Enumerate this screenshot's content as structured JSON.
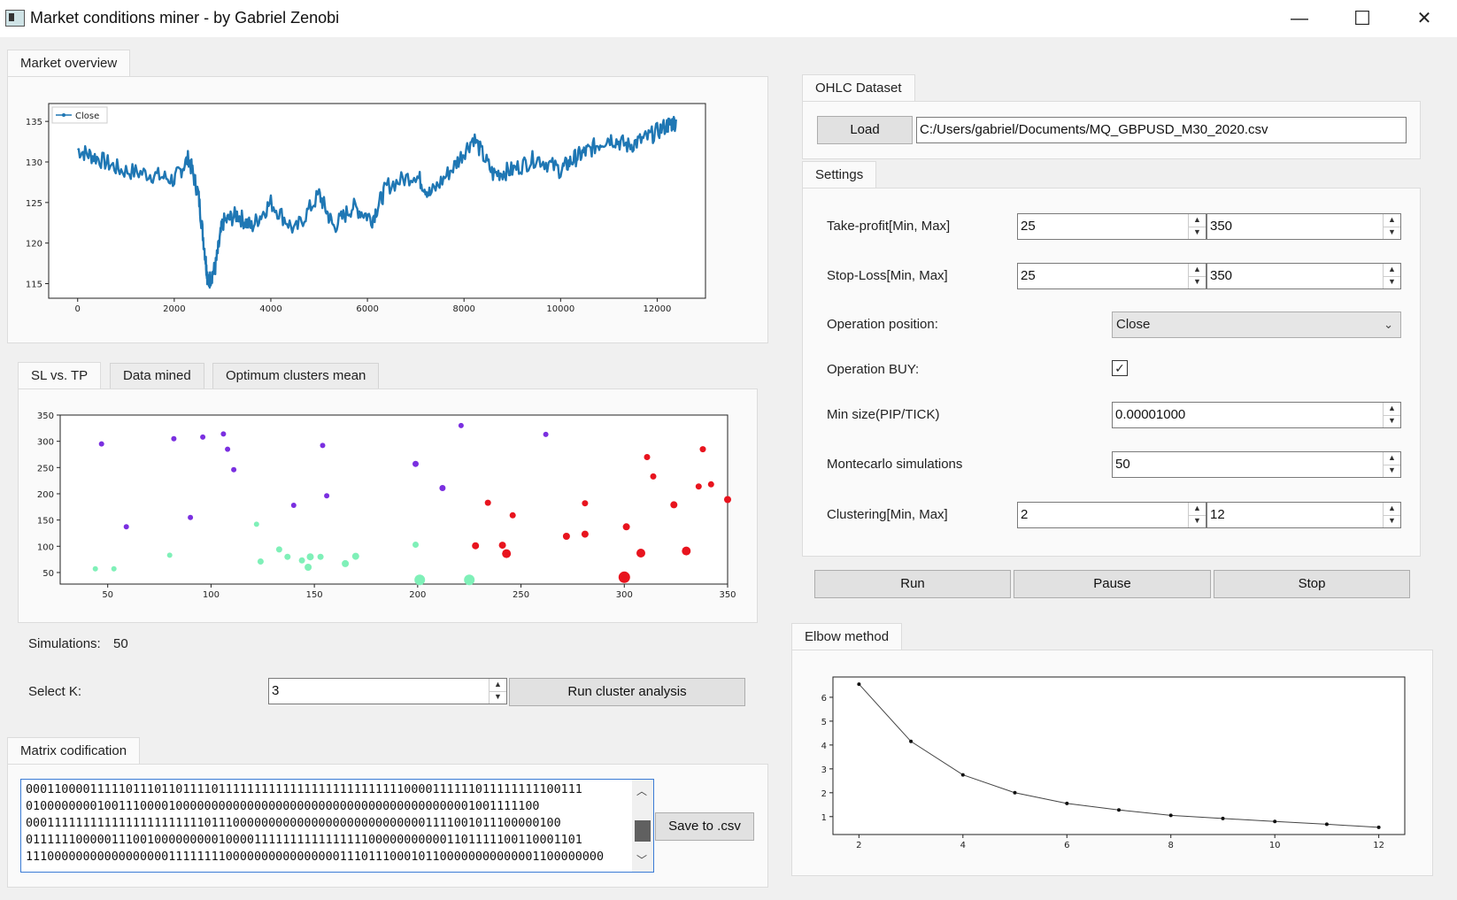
{
  "window": {
    "title": "Market conditions miner - by Gabriel Zenobi",
    "minimize": "—",
    "maximize": "☐",
    "close": "✕"
  },
  "market": {
    "tab": "Market overview",
    "chart_data": {
      "type": "line",
      "title": "",
      "legend": "Close",
      "legend_position": "top-left",
      "x_ticks": [
        "0",
        "2000",
        "4000",
        "6000",
        "8000",
        "10000",
        "12000"
      ],
      "y_ticks": [
        "135",
        "130",
        "125",
        "120",
        "115"
      ],
      "xlim": [
        -600,
        13000
      ],
      "ylim": [
        113.2,
        137.2
      ],
      "x": [
        0,
        400,
        900,
        1500,
        2000,
        2300,
        2500,
        2650,
        2700,
        2850,
        3000,
        3300,
        3600,
        4000,
        4500,
        5000,
        5300,
        5700,
        6100,
        6400,
        7000,
        7300,
        7800,
        8200,
        8600,
        9000,
        9500,
        10000,
        10300,
        10600,
        11000,
        11400,
        11800,
        12200,
        12400
      ],
      "y": [
        131.5,
        130.5,
        129.0,
        128.5,
        127.8,
        130.5,
        126.0,
        118.0,
        115.0,
        117.0,
        122.5,
        123.5,
        122.0,
        125.0,
        121.5,
        126.0,
        122.0,
        124.5,
        123.0,
        127.0,
        128.5,
        126.0,
        129.5,
        133.0,
        128.5,
        129.0,
        130.5,
        129.0,
        130.5,
        131.5,
        133.0,
        132.0,
        133.0,
        134.5,
        135.0
      ]
    }
  },
  "scatter_tabs": [
    "SL vs. TP",
    "Data mined",
    "Optimum clusters mean"
  ],
  "scatter": {
    "chart_data": {
      "type": "scatter",
      "title": "",
      "x_ticks": [
        "50",
        "100",
        "150",
        "200",
        "250",
        "300",
        "350"
      ],
      "y_ticks": [
        "350",
        "300",
        "250",
        "200",
        "150",
        "100",
        "50"
      ],
      "xlim": [
        27,
        350
      ],
      "ylim": [
        28,
        350
      ],
      "points": [
        {
          "x": 47,
          "y": 295,
          "s": 3,
          "c": "#7a2fe0"
        },
        {
          "x": 82,
          "y": 305,
          "s": 3,
          "c": "#7a2fe0"
        },
        {
          "x": 96,
          "y": 308,
          "s": 3,
          "c": "#7a2fe0"
        },
        {
          "x": 106,
          "y": 314,
          "s": 3,
          "c": "#7a2fe0"
        },
        {
          "x": 108,
          "y": 285,
          "s": 3,
          "c": "#7a2fe0"
        },
        {
          "x": 111,
          "y": 246,
          "s": 3,
          "c": "#7a2fe0"
        },
        {
          "x": 59,
          "y": 137,
          "s": 3,
          "c": "#7a2fe0"
        },
        {
          "x": 90,
          "y": 155,
          "s": 3,
          "c": "#7a2fe0"
        },
        {
          "x": 154,
          "y": 292,
          "s": 3,
          "c": "#7a2fe0"
        },
        {
          "x": 140,
          "y": 178,
          "s": 3,
          "c": "#7a2fe0"
        },
        {
          "x": 156,
          "y": 196,
          "s": 3,
          "c": "#7a2fe0"
        },
        {
          "x": 199,
          "y": 257,
          "s": 3.5,
          "c": "#7a2fe0"
        },
        {
          "x": 221,
          "y": 330,
          "s": 3,
          "c": "#7a2fe0"
        },
        {
          "x": 212,
          "y": 211,
          "s": 3.5,
          "c": "#7a2fe0"
        },
        {
          "x": 262,
          "y": 313,
          "s": 3,
          "c": "#7a2fe0"
        },
        {
          "x": 44,
          "y": 57,
          "s": 3,
          "c": "#7ff0b8"
        },
        {
          "x": 53,
          "y": 57,
          "s": 3,
          "c": "#7ff0b8"
        },
        {
          "x": 80,
          "y": 83,
          "s": 3,
          "c": "#7ff0b8"
        },
        {
          "x": 122,
          "y": 142,
          "s": 3,
          "c": "#7ff0b8"
        },
        {
          "x": 124,
          "y": 71,
          "s": 3.5,
          "c": "#7ff0b8"
        },
        {
          "x": 133,
          "y": 94,
          "s": 3.5,
          "c": "#7ff0b8"
        },
        {
          "x": 137,
          "y": 80,
          "s": 3.5,
          "c": "#7ff0b8"
        },
        {
          "x": 144,
          "y": 73,
          "s": 3.5,
          "c": "#7ff0b8"
        },
        {
          "x": 148,
          "y": 80,
          "s": 4,
          "c": "#7ff0b8"
        },
        {
          "x": 147,
          "y": 60,
          "s": 4,
          "c": "#7ff0b8"
        },
        {
          "x": 153,
          "y": 80,
          "s": 3.5,
          "c": "#7ff0b8"
        },
        {
          "x": 170,
          "y": 81,
          "s": 4,
          "c": "#7ff0b8"
        },
        {
          "x": 165,
          "y": 67,
          "s": 4,
          "c": "#7ff0b8"
        },
        {
          "x": 199,
          "y": 103,
          "s": 3.5,
          "c": "#7ff0b8"
        },
        {
          "x": 201,
          "y": 36,
          "s": 6,
          "c": "#7ff0b8"
        },
        {
          "x": 225,
          "y": 36,
          "s": 6,
          "c": "#7ff0b8"
        },
        {
          "x": 228,
          "y": 101,
          "s": 4,
          "c": "#e8141e"
        },
        {
          "x": 234,
          "y": 183,
          "s": 3.5,
          "c": "#e8141e"
        },
        {
          "x": 241,
          "y": 102,
          "s": 4,
          "c": "#e8141e"
        },
        {
          "x": 243,
          "y": 86,
          "s": 5,
          "c": "#e8141e"
        },
        {
          "x": 246,
          "y": 159,
          "s": 3.5,
          "c": "#e8141e"
        },
        {
          "x": 272,
          "y": 119,
          "s": 4,
          "c": "#e8141e"
        },
        {
          "x": 281,
          "y": 182,
          "s": 3.5,
          "c": "#e8141e"
        },
        {
          "x": 281,
          "y": 123,
          "s": 4,
          "c": "#e8141e"
        },
        {
          "x": 301,
          "y": 137,
          "s": 4,
          "c": "#e8141e"
        },
        {
          "x": 300,
          "y": 41,
          "s": 6.5,
          "c": "#e8141e"
        },
        {
          "x": 308,
          "y": 87,
          "s": 5,
          "c": "#e8141e"
        },
        {
          "x": 311,
          "y": 270,
          "s": 3.5,
          "c": "#e8141e"
        },
        {
          "x": 314,
          "y": 233,
          "s": 3.5,
          "c": "#e8141e"
        },
        {
          "x": 324,
          "y": 179,
          "s": 4,
          "c": "#e8141e"
        },
        {
          "x": 330,
          "y": 91,
          "s": 5,
          "c": "#e8141e"
        },
        {
          "x": 336,
          "y": 214,
          "s": 3.5,
          "c": "#e8141e"
        },
        {
          "x": 338,
          "y": 285,
          "s": 3.5,
          "c": "#e8141e"
        },
        {
          "x": 342,
          "y": 218,
          "s": 3.5,
          "c": "#e8141e"
        },
        {
          "x": 350,
          "y": 189,
          "s": 4,
          "c": "#e8141e"
        }
      ]
    }
  },
  "simulations": {
    "label": "Simulations:",
    "value": "50"
  },
  "selectk": {
    "label": "Select K:",
    "value": "3",
    "button": "Run cluster analysis"
  },
  "matrix": {
    "tab": "Matrix codification",
    "save": "Save to .csv",
    "lines": [
      "000110000111110111011011110111111111111111111111111110000111111011111111100111",
      "010000000010011100001000000000000000000000000000000000000000001001111100",
      "000111111111111111111111101110000000000000000000000000001111001011100000100",
      "011111100000111001000000000100001111111111111111000000000001101111100110001101",
      "111000000000000000001111111100000000000000001110111000101100000000000001100000000"
    ]
  },
  "ohlc": {
    "tab": "OHLC Dataset",
    "load": "Load",
    "path": "C:/Users/gabriel/Documents/MQ_GBPUSD_M30_2020.csv"
  },
  "settings": {
    "tab": "Settings",
    "tp": {
      "label": "Take-profit[Min, Max]",
      "min": "25",
      "max": "350"
    },
    "sl": {
      "label": "Stop-Loss[Min, Max]",
      "min": "25",
      "max": "350"
    },
    "op_position": {
      "label": "Operation position:",
      "value": "Close"
    },
    "op_buy": {
      "label": "Operation BUY:",
      "checked": "✓"
    },
    "min_size": {
      "label": "Min size(PIP/TICK)",
      "value": "0.00001000"
    },
    "montecarlo": {
      "label": "Montecarlo simulations",
      "value": "50"
    },
    "clustering": {
      "label": "Clustering[Min, Max]",
      "min": "2",
      "max": "12"
    }
  },
  "controls": {
    "run": "Run",
    "pause": "Pause",
    "stop": "Stop"
  },
  "elbow": {
    "tab": "Elbow method",
    "chart_data": {
      "type": "line",
      "title": "",
      "x": [
        2,
        3,
        4,
        5,
        6,
        7,
        8,
        9,
        10,
        11,
        12
      ],
      "y": [
        6.55,
        4.15,
        2.75,
        2.0,
        1.55,
        1.28,
        1.05,
        0.92,
        0.8,
        0.68,
        0.55
      ],
      "x_ticks": [
        "2",
        "4",
        "6",
        "8",
        "10",
        "12"
      ],
      "y_ticks": [
        "6",
        "5",
        "4",
        "3",
        "2",
        "1"
      ],
      "xlim": [
        1.5,
        12.5
      ],
      "ylim": [
        0.25,
        6.85
      ]
    }
  }
}
